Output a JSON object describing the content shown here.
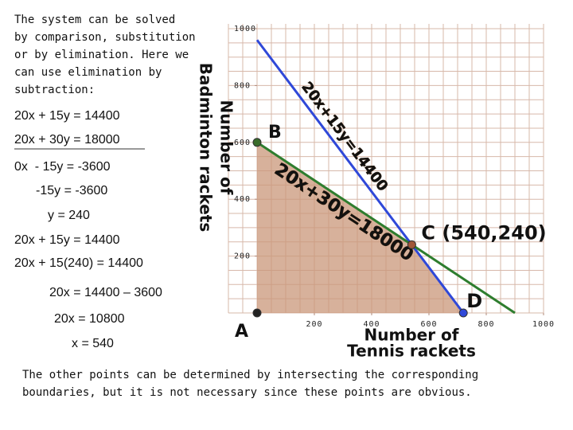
{
  "intro": [
    "The system can be solved",
    "by comparison, substitution",
    "or by elimination.  Here we",
    "can use elimination by",
    "subtraction:"
  ],
  "equations": [
    "20x + 15y = 14400",
    "20x + 30y = 18000",
    "0x  - 15y = -3600",
    "-15y = -3600",
    "y = 240",
    "20x + 15y = 14400",
    "20x + 15(240) = 14400",
    "20x = 14400 – 3600",
    "20x = 10800",
    "x = 540"
  ],
  "footer": [
    "The other points can be determined by intersecting the corresponding",
    "boundaries, but it is not necessary since these points are obvious."
  ],
  "chart_data": {
    "type": "line",
    "xlabel": [
      "Number of",
      "Tennis rackets"
    ],
    "ylabel": [
      "Number of",
      "Badminton rackets"
    ],
    "xlim": [
      -100,
      1000
    ],
    "ylim": [
      0,
      1000
    ],
    "xticks": [
      200,
      400,
      600,
      800,
      1000
    ],
    "yticks": [
      200,
      400,
      600,
      800,
      1000
    ],
    "grid": true,
    "series": [
      {
        "name": "20x+15y=14400",
        "color": "#2f48d8",
        "x": [
          0,
          720
        ],
        "values": [
          960,
          0
        ]
      },
      {
        "name": "20x+30y=18000",
        "color": "#2e7d2e",
        "x": [
          0,
          900
        ],
        "values": [
          600,
          0
        ]
      }
    ],
    "region_color": "#c9977a",
    "points": [
      {
        "label": "A",
        "x": 0,
        "y": 0,
        "color": "#222222"
      },
      {
        "label": "B",
        "x": 0,
        "y": 600,
        "color": "#3a6b2a"
      },
      {
        "label": "C (540,240)",
        "x": 540,
        "y": 240,
        "color": "#a0583a"
      },
      {
        "label": "D",
        "x": 720,
        "y": 0,
        "color": "#2f48d8"
      }
    ]
  }
}
